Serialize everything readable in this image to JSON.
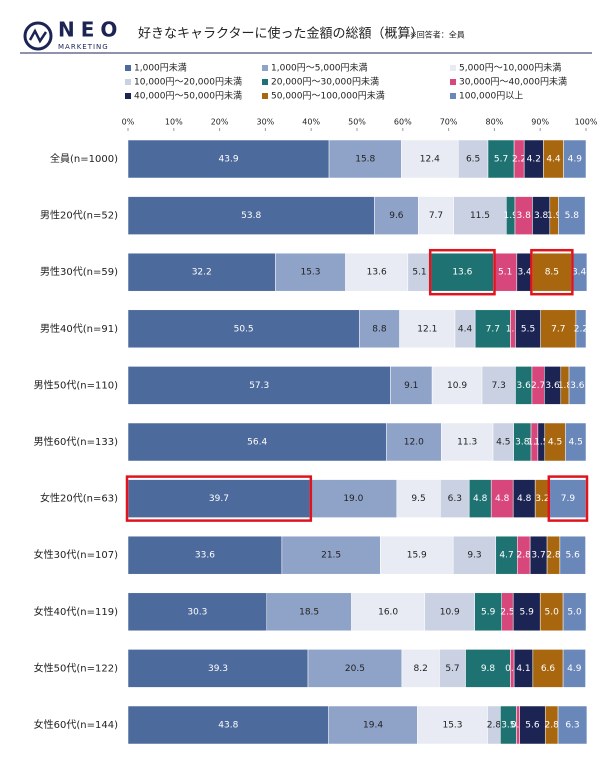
{
  "brand": {
    "name": "NEO",
    "tagline": "MARKETING"
  },
  "chart_data": {
    "type": "stacked-bar-horizontal",
    "title": "好きなキャラクターに使った金額の総額（概算）",
    "subtitle": "※回答者：全員",
    "categories": [
      "全員(n=1000)",
      "男性20代(n=52)",
      "男性30代(n=59)",
      "男性40代(n=91)",
      "男性50代(n=110)",
      "男性60代(n=133)",
      "女性20代(n=63)",
      "女性30代(n=107)",
      "女性40代(n=119)",
      "女性50代(n=122)",
      "女性60代(n=144)"
    ],
    "xlim": [
      0,
      100
    ],
    "xticks": [
      {
        "value": 0,
        "label": "0%"
      },
      {
        "value": 10,
        "label": "10%"
      },
      {
        "value": 20,
        "label": "20%"
      },
      {
        "value": 30,
        "label": "30%"
      },
      {
        "value": 40,
        "label": "40%"
      },
      {
        "value": 50,
        "label": "50%"
      },
      {
        "value": 60,
        "label": "60%"
      },
      {
        "value": 70,
        "label": "70%"
      },
      {
        "value": 80,
        "label": "80%"
      },
      {
        "value": 90,
        "label": "90%"
      },
      {
        "value": 100,
        "label": "100%"
      }
    ],
    "grid": false,
    "series": [
      {
        "name": "1,000円未満",
        "color": "#4d6a9c",
        "values": [
          43.9,
          53.8,
          32.2,
          50.5,
          57.3,
          56.4,
          39.7,
          33.6,
          30.3,
          39.3,
          43.8
        ],
        "value_labels": [
          "43.9",
          "53.8",
          "32.2",
          "50.5",
          "57.3",
          "56.4",
          "39.7",
          "33.6",
          "30.3",
          "39.3",
          "43.8"
        ]
      },
      {
        "name": "1,000円～5,000円未満",
        "color": "#8fa3c8",
        "values": [
          15.8,
          9.6,
          15.3,
          8.8,
          9.1,
          12.0,
          19.0,
          21.5,
          18.5,
          20.5,
          19.4
        ],
        "value_labels": [
          "15.8",
          "9.6",
          "15.3",
          "8.8",
          "9.1",
          "12.0",
          "19.0",
          "21.5",
          "18.5",
          "20.5",
          "19.4"
        ]
      },
      {
        "name": "5,000円～10,000円未満",
        "color": "#e8ebf3",
        "values": [
          12.4,
          7.7,
          13.6,
          12.1,
          10.9,
          11.3,
          9.5,
          15.9,
          16.0,
          8.2,
          15.3
        ],
        "value_labels": [
          "12.4",
          "7.7",
          "13.6",
          "12.1",
          "10.9",
          "11.3",
          "9.5",
          "15.9",
          "16.0",
          "8.2",
          "15.3"
        ]
      },
      {
        "name": "10,000円～20,000円未満",
        "color": "#c9d1e3",
        "values": [
          6.5,
          11.5,
          5.1,
          4.4,
          7.3,
          4.5,
          6.3,
          9.3,
          10.9,
          5.7,
          2.8
        ],
        "value_labels": [
          "6.5",
          "11.5",
          "5.1",
          "4.4",
          "7.3",
          "4.5",
          "6.3",
          "9.3",
          "10.9",
          "5.7",
          "2.8"
        ]
      },
      {
        "name": "20,000円～30,000円未満",
        "color": "#1e7372",
        "values": [
          5.7,
          1.9,
          13.6,
          7.7,
          3.6,
          3.8,
          4.8,
          4.7,
          5.9,
          9.8,
          3.5
        ],
        "value_labels": [
          "5.7",
          "1.9",
          "13.6",
          "7.7",
          "3.6",
          "3.8",
          "4.8",
          "4.7",
          "5.9",
          "9.8",
          "3.5"
        ]
      },
      {
        "name": "30,000円～40,000円未満",
        "color": "#d8477b",
        "values": [
          2.2,
          3.8,
          5.1,
          1.1,
          2.7,
          1.5,
          4.8,
          2.8,
          2.5,
          0.8,
          0.7
        ],
        "value_labels": [
          "2.2",
          "3.8",
          "5.1",
          "1.1",
          "2.7",
          "1.5",
          "4.8",
          "2.8",
          "2.5",
          "0.8",
          "0.7"
        ]
      },
      {
        "name": "40,000円～50,000円未満",
        "color": "#1c2454",
        "values": [
          4.2,
          3.8,
          3.4,
          5.5,
          3.6,
          1.5,
          4.8,
          3.7,
          5.9,
          4.1,
          5.6
        ],
        "value_labels": [
          "4.2",
          "3.8",
          "3.4",
          "5.5",
          "3.6",
          "1.5",
          "4.8",
          "3.7",
          "5.9",
          "4.1",
          "5.6"
        ]
      },
      {
        "name": "50,000円～100,000円未満",
        "color": "#a8670f",
        "values": [
          4.4,
          1.9,
          8.5,
          7.7,
          1.8,
          4.5,
          3.2,
          2.8,
          5.0,
          6.6,
          2.8
        ],
        "value_labels": [
          "4.4",
          "1.9",
          "8.5",
          "7.7",
          "1.8",
          "4.5",
          "3.2",
          "2.8",
          "5.0",
          "6.6",
          "2.8"
        ]
      },
      {
        "name": "100,000円以上",
        "color": "#6a87ba",
        "values": [
          4.9,
          5.8,
          3.4,
          2.2,
          3.6,
          4.5,
          7.9,
          5.6,
          5.0,
          4.9,
          6.3
        ],
        "value_labels": [
          "4.9",
          "5.8",
          "3.4",
          "2.2",
          "3.6",
          "4.5",
          "7.9",
          "5.6",
          "5.0",
          "4.9",
          "6.3"
        ]
      }
    ]
  }
}
